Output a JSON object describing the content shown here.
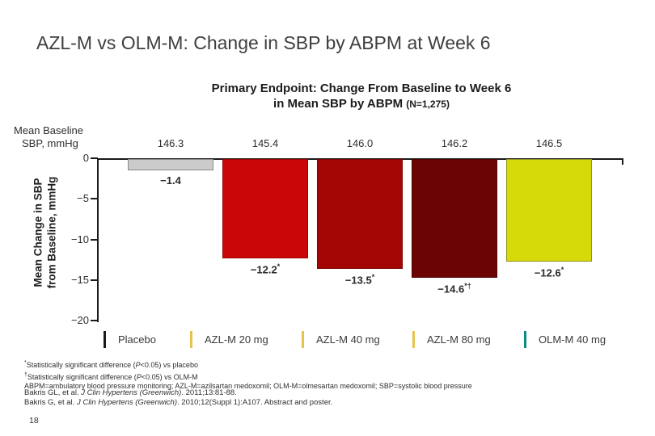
{
  "slide": {
    "title": "AZL-M vs OLM-M: Change in SBP by ABPM at Week 6",
    "page_number": "18"
  },
  "subtitle": {
    "line1": "Primary Endpoint: Change From Baseline to Week 6",
    "line2": "in Mean SBP by ABPM ",
    "line2_note": "(N=1,275)"
  },
  "chart_data": {
    "type": "bar",
    "title": "Primary Endpoint: Change From Baseline to Week 6 in Mean SBP by ABPM (N=1,275)",
    "baseline_row_label_line1": "Mean Baseline",
    "baseline_row_label_line2": "SBP, mmHg",
    "baseline_values": [
      "146.3",
      "145.4",
      "146.0",
      "146.2",
      "146.5"
    ],
    "categories": [
      "Placebo",
      "AZL-M 20 mg",
      "AZL-M 40 mg",
      "AZL-M 80 mg",
      "OLM-M 40 mg"
    ],
    "values": [
      -1.4,
      -12.2,
      -13.5,
      -14.6,
      -12.6
    ],
    "value_labels": [
      {
        "main": "−1.4",
        "sup": ""
      },
      {
        "main": "−12.2",
        "sup": "*"
      },
      {
        "main": "−13.5",
        "sup": "*"
      },
      {
        "main": "−14.6",
        "sup": "*†"
      },
      {
        "main": "−12.6",
        "sup": "*"
      }
    ],
    "bar_colors": [
      "#cbcbcb",
      "#cb0606",
      "#a40505",
      "#6b0404",
      "#d6da09"
    ],
    "bar_border_colors": [
      "#8a8a8a",
      "#9e0404",
      "#7e0303",
      "#4f0202",
      "#93941c"
    ],
    "legend_marker_colors": [
      "#1a1a1a",
      "#e6c34c",
      "#e6c34c",
      "#e6c34c",
      "#0e8a82"
    ],
    "ylabel_line1": "Mean Change in SBP",
    "ylabel_line2": "from Baseline, mmHg",
    "yticks": [
      0,
      -5,
      -10,
      -15,
      -20
    ],
    "ytick_labels": [
      "0",
      "−5",
      "−10",
      "−15",
      "−20"
    ],
    "ylim": [
      -20,
      0
    ],
    "grid": false,
    "legend_position": "bottom"
  },
  "footnotes": [
    {
      "marker": "*",
      "pre": "Statistically significant difference (",
      "italic": "P",
      "post": "<0.05) vs placebo"
    },
    {
      "marker": "†",
      "pre": "Statistically significant difference (",
      "italic": "P",
      "post": "<0.05) vs OLM-M"
    },
    {
      "marker": "",
      "pre": "ABPM=ambulatory blood pressure monitoring; AZL-M=azilsartan medoxomil; OLM-M=olmesartan medoxomil; SBP=systolic blood pressure",
      "italic": "",
      "post": ""
    }
  ],
  "references": [
    {
      "pre": "Bakris GL, et al. ",
      "italic": "J Clin Hypertens (Greenwich)",
      "post": ". 2011;13:81-88."
    },
    {
      "pre": "Bakris G, et al. ",
      "italic": "J Clin Hypertens (Greenwich)",
      "post": ". 2010;12(Suppl 1):A107. Abstract and poster."
    }
  ]
}
